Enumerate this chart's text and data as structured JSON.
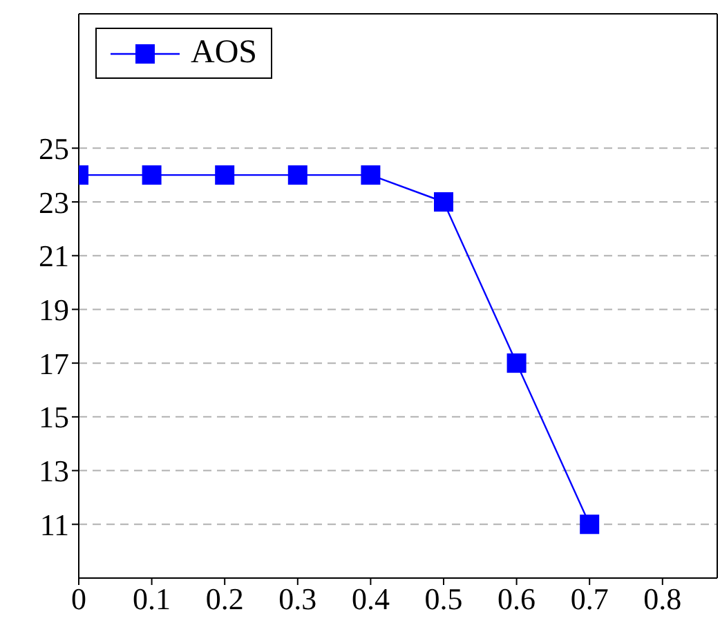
{
  "chart_data": {
    "type": "line",
    "x": [
      0,
      0.1,
      0.2,
      0.3,
      0.4,
      0.5,
      0.6,
      0.7
    ],
    "series": [
      {
        "name": "AOS",
        "color": "#0000ff",
        "values": [
          24,
          24,
          24,
          24,
          24,
          23,
          17,
          11
        ]
      }
    ],
    "xlim": [
      0,
      0.875
    ],
    "xticks": [
      0,
      0.1,
      0.2,
      0.3,
      0.4,
      0.5,
      0.6,
      0.7,
      0.8
    ],
    "ylim": [
      9,
      30
    ],
    "yticks": [
      11,
      13,
      15,
      17,
      19,
      21,
      23,
      25
    ],
    "grid": "y",
    "legend": "top left",
    "marker": "square",
    "line_style": "solid"
  }
}
